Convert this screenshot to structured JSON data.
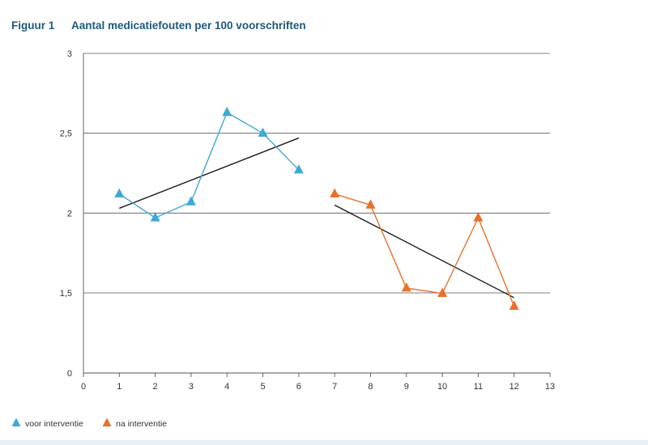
{
  "figure_label": "Figuur 1",
  "figure_title": "Aantal medicatiefouten per 100 voorschriften",
  "chart_data": {
    "type": "line",
    "title": "Aantal medicatiefouten per 100 voorschriften",
    "xlabel": "",
    "ylabel": "",
    "xlim": [
      0,
      13
    ],
    "x_ticks": [
      "0",
      "1",
      "2",
      "3",
      "4",
      "5",
      "6",
      "7",
      "8",
      "9",
      "10",
      "11",
      "12",
      "13"
    ],
    "y_ticks": [
      {
        "value": 0,
        "label": "0"
      },
      {
        "value": 1.5,
        "label": "1,5"
      },
      {
        "value": 2,
        "label": "2"
      },
      {
        "value": 2.5,
        "label": "2,5"
      },
      {
        "value": 3,
        "label": "3"
      }
    ],
    "grid": "horizontal",
    "legend_position": "bottom-left",
    "series": [
      {
        "name": "voor interventie",
        "color": "#3fa9d6",
        "marker": "triangle",
        "x": [
          1,
          2,
          3,
          4,
          5,
          6
        ],
        "y": [
          2.12,
          1.97,
          2.07,
          2.63,
          2.5,
          2.27
        ],
        "trend": {
          "x": [
            1,
            6
          ],
          "y": [
            2.03,
            2.47
          ],
          "color": "#1a1a1a"
        }
      },
      {
        "name": "na interventie",
        "color": "#e8702a",
        "marker": "triangle",
        "x": [
          7,
          8,
          9,
          10,
          11,
          12
        ],
        "y": [
          2.12,
          2.05,
          1.53,
          1.49,
          1.97,
          1.25
        ],
        "trend": {
          "x": [
            7,
            12
          ],
          "y": [
            2.05,
            1.41
          ],
          "color": "#1a1a1a"
        }
      }
    ]
  }
}
